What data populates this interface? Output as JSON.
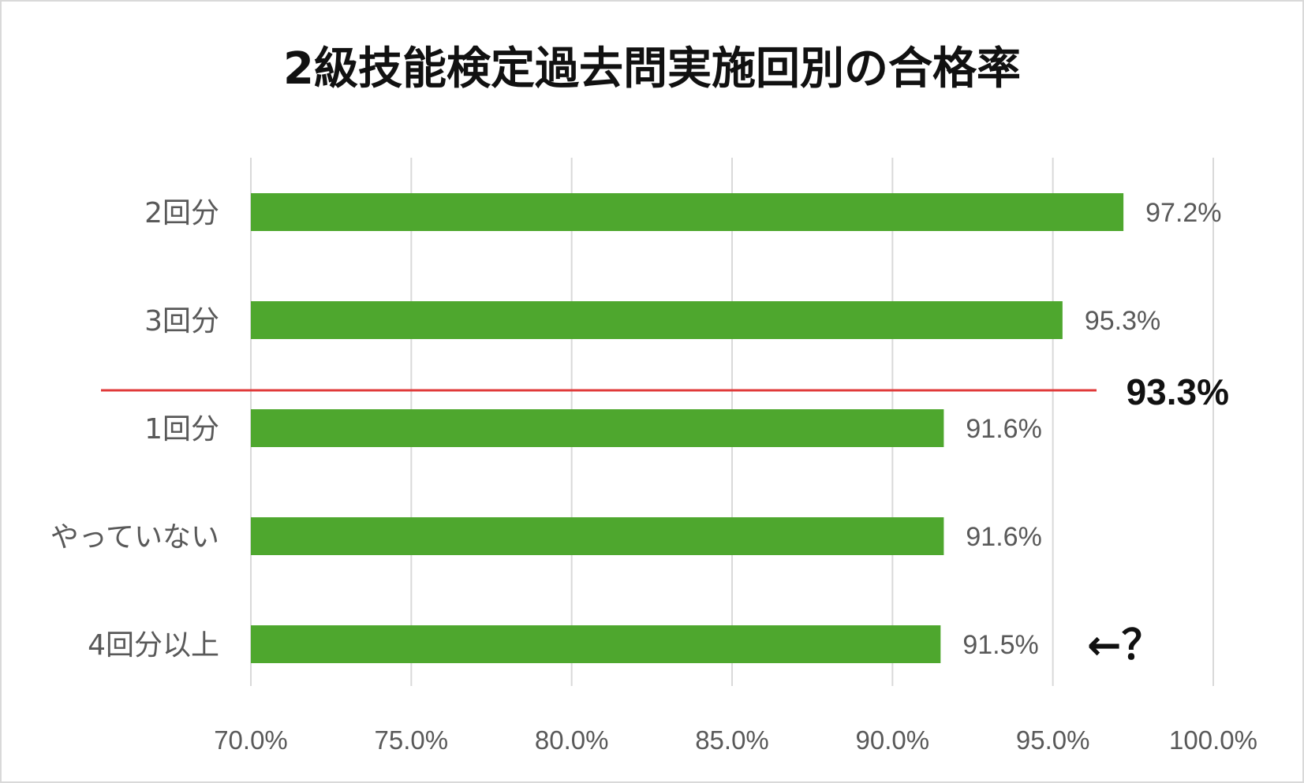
{
  "chart_data": {
    "type": "bar",
    "orientation": "horizontal",
    "title": "2級技能検定過去問実施回別の合格率",
    "categories": [
      "2回分",
      "3回分",
      "1回分",
      "やっていない",
      "4回分以上"
    ],
    "values": [
      97.2,
      95.3,
      91.6,
      91.6,
      91.5
    ],
    "data_labels": [
      "97.2%",
      "95.3%",
      "91.6%",
      "91.6%",
      "91.5%"
    ],
    "xlim": [
      70,
      100
    ],
    "x_ticks": [
      70,
      75,
      80,
      85,
      90,
      95,
      100
    ],
    "x_tick_labels": [
      "70.0%",
      "75.0%",
      "80.0%",
      "85.0%",
      "90.0%",
      "95.0%",
      "100.0%"
    ],
    "grid": "vertical",
    "bar_color": "#4ea72e",
    "reference_line": {
      "value_label": "93.3%",
      "color": "#e03a3a"
    },
    "annotation": {
      "text": "←？",
      "category": "4回分以上"
    }
  }
}
